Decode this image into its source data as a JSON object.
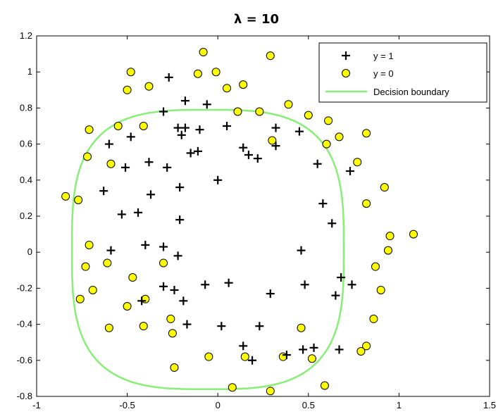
{
  "chart_data": {
    "type": "scatter",
    "title": "λ = 10",
    "xlabel": "",
    "ylabel": "",
    "xlim": [
      -1,
      1.5
    ],
    "ylim": [
      -0.8,
      1.2
    ],
    "xticks": [
      "-1",
      "-0.5",
      "0",
      "0.5",
      "1",
      "1.5"
    ],
    "yticks": [
      "-0.8",
      "-0.6",
      "-0.4",
      "-0.2",
      "0",
      "0.2",
      "0.4",
      "0.6",
      "0.8",
      "1",
      "1.2"
    ],
    "grid": false,
    "legend_position": "top-right",
    "series": [
      {
        "name": "y = 1",
        "marker": "plus",
        "color": "#000000",
        "points": [
          [
            -0.27,
            0.97
          ],
          [
            -0.18,
            0.84
          ],
          [
            -0.06,
            0.82
          ],
          [
            -0.3,
            0.78
          ],
          [
            -0.22,
            0.69
          ],
          [
            -0.18,
            0.69
          ],
          [
            -0.1,
            0.68
          ],
          [
            -0.2,
            0.65
          ],
          [
            0.05,
            0.7
          ],
          [
            0.32,
            0.69
          ],
          [
            0.45,
            0.67
          ],
          [
            -0.6,
            0.6
          ],
          [
            -0.48,
            0.64
          ],
          [
            -0.15,
            0.55
          ],
          [
            -0.11,
            0.56
          ],
          [
            0.14,
            0.58
          ],
          [
            0.17,
            0.54
          ],
          [
            0.22,
            0.52
          ],
          [
            0.32,
            0.59
          ],
          [
            -0.51,
            0.47
          ],
          [
            -0.38,
            0.5
          ],
          [
            -0.28,
            0.47
          ],
          [
            0.55,
            0.49
          ],
          [
            0.73,
            0.45
          ],
          [
            -0.63,
            0.34
          ],
          [
            -0.21,
            0.36
          ],
          [
            0.0,
            0.4
          ],
          [
            -0.37,
            0.32
          ],
          [
            -0.53,
            0.21
          ],
          [
            -0.44,
            0.22
          ],
          [
            0.58,
            0.27
          ],
          [
            0.63,
            0.16
          ],
          [
            -0.21,
            0.18
          ],
          [
            -0.59,
            0.01
          ],
          [
            -0.4,
            0.04
          ],
          [
            -0.3,
            0.03
          ],
          [
            -0.22,
            -0.02
          ],
          [
            0.46,
            0.01
          ],
          [
            -0.3,
            -0.19
          ],
          [
            -0.24,
            -0.21
          ],
          [
            -0.07,
            -0.18
          ],
          [
            0.06,
            -0.17
          ],
          [
            0.29,
            -0.23
          ],
          [
            0.48,
            -0.18
          ],
          [
            0.74,
            -0.18
          ],
          [
            0.68,
            -0.14
          ],
          [
            0.65,
            -0.24
          ],
          [
            -0.42,
            -0.27
          ],
          [
            -0.19,
            -0.27
          ],
          [
            -0.17,
            -0.4
          ],
          [
            0.02,
            -0.41
          ],
          [
            0.23,
            -0.41
          ],
          [
            0.14,
            -0.52
          ],
          [
            0.19,
            -0.6
          ],
          [
            0.38,
            -0.57
          ],
          [
            0.47,
            -0.54
          ],
          [
            0.53,
            -0.53
          ],
          [
            0.67,
            -0.54
          ]
        ]
      },
      {
        "name": "y = 0",
        "marker": "circle",
        "color": "#ffff00",
        "points": [
          [
            -0.08,
            1.11
          ],
          [
            -0.48,
            1.0
          ],
          [
            -0.11,
            0.99
          ],
          [
            -0.01,
            1.0
          ],
          [
            0.29,
            1.09
          ],
          [
            -0.5,
            0.9
          ],
          [
            -0.38,
            0.92
          ],
          [
            0.05,
            0.91
          ],
          [
            0.14,
            0.93
          ],
          [
            0.39,
            0.82
          ],
          [
            0.11,
            0.78
          ],
          [
            0.23,
            0.78
          ],
          [
            0.5,
            0.76
          ],
          [
            0.61,
            0.73
          ],
          [
            -0.71,
            0.68
          ],
          [
            -0.55,
            0.7
          ],
          [
            -0.41,
            0.7
          ],
          [
            0.3,
            0.62
          ],
          [
            0.67,
            0.64
          ],
          [
            0.82,
            0.66
          ],
          [
            0.6,
            0.6
          ],
          [
            -0.72,
            0.53
          ],
          [
            -0.59,
            0.49
          ],
          [
            0.77,
            0.5
          ],
          [
            -0.84,
            0.31
          ],
          [
            -0.77,
            0.29
          ],
          [
            0.92,
            0.36
          ],
          [
            0.82,
            0.27
          ],
          [
            0.95,
            0.09
          ],
          [
            1.08,
            0.1
          ],
          [
            -0.71,
            0.04
          ],
          [
            -0.73,
            -0.08
          ],
          [
            -0.61,
            -0.06
          ],
          [
            -0.3,
            -0.06
          ],
          [
            0.94,
            0.01
          ],
          [
            0.87,
            -0.08
          ],
          [
            -0.47,
            -0.14
          ],
          [
            -0.69,
            -0.21
          ],
          [
            0.9,
            -0.21
          ],
          [
            -0.76,
            -0.26
          ],
          [
            -0.5,
            -0.3
          ],
          [
            -0.4,
            -0.26
          ],
          [
            -0.6,
            -0.42
          ],
          [
            -0.41,
            -0.41
          ],
          [
            -0.26,
            -0.37
          ],
          [
            -0.25,
            -0.45
          ],
          [
            0.46,
            -0.42
          ],
          [
            0.86,
            -0.37
          ],
          [
            -0.24,
            -0.64
          ],
          [
            -0.05,
            -0.58
          ],
          [
            0.15,
            -0.58
          ],
          [
            0.36,
            -0.58
          ],
          [
            0.52,
            -0.59
          ],
          [
            0.82,
            -0.52
          ],
          [
            0.79,
            -0.55
          ],
          [
            0.08,
            -0.75
          ],
          [
            0.29,
            -0.77
          ],
          [
            0.59,
            -0.74
          ]
        ]
      },
      {
        "name": "Decision boundary",
        "marker": "line",
        "color": "#88ee77"
      }
    ]
  }
}
